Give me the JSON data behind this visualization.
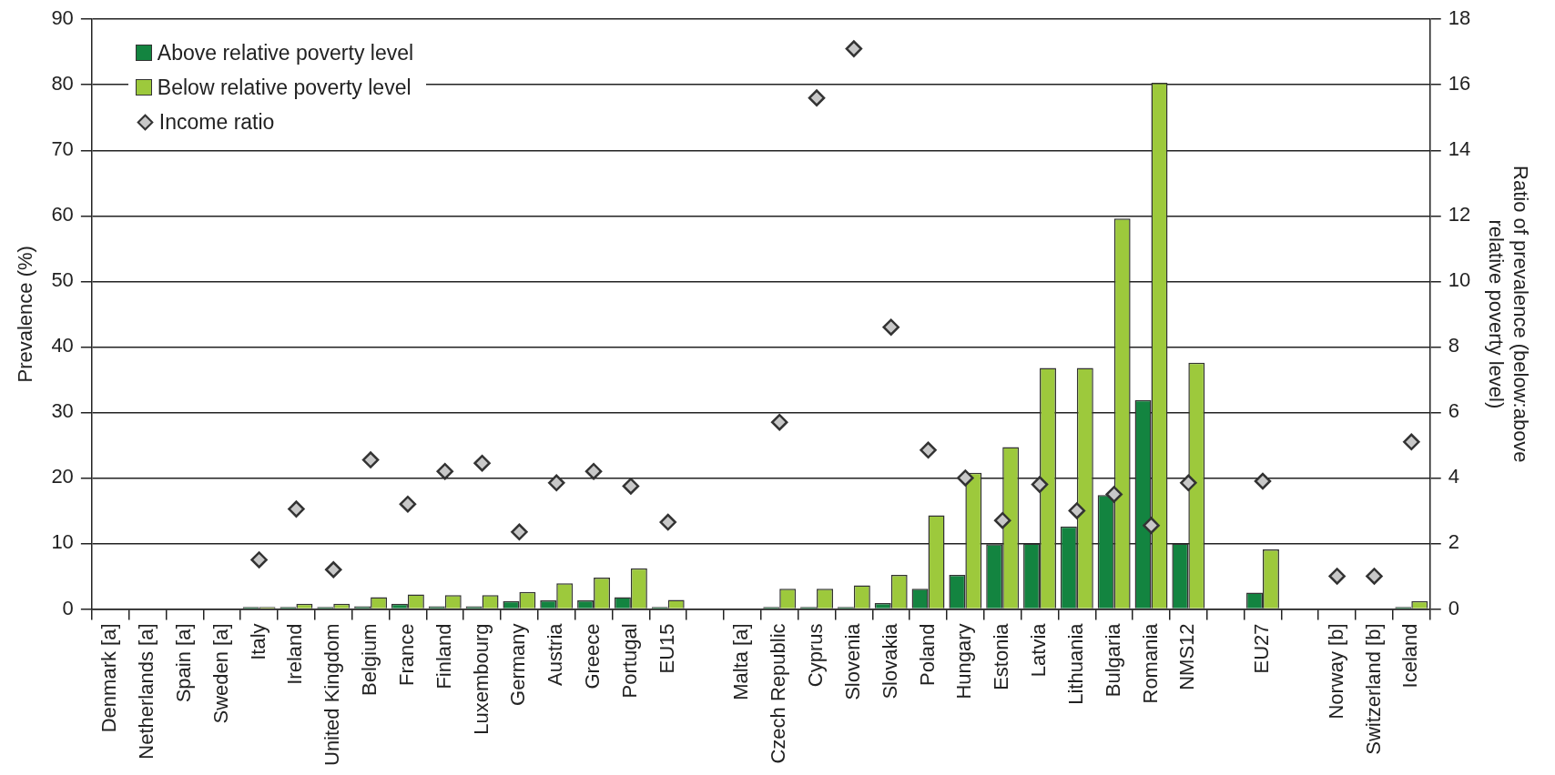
{
  "chart_data": {
    "type": "bar",
    "ylabel": "Prevalence (%)",
    "y2label": "Ratio of prevalence (below:above\nrelative poverty level)",
    "categories": [
      "Denmark [a]",
      "Netherlands [a]",
      "Spain [a]",
      "Sweden [a]",
      "Italy",
      "Ireland",
      "United Kingdom",
      "Belgium",
      "France",
      "Finland",
      "Luxembourg",
      "Germany",
      "Austria",
      "Greece",
      "Portugal",
      "EU15",
      null,
      "Malta [a]",
      "Czech Republic",
      "Cyprus",
      "Slovenia",
      "Slovakia",
      "Poland",
      "Hungary",
      "Estonia",
      "Latvia",
      "Lithuania",
      "Bulgaria",
      "Romania",
      "NMS12",
      null,
      "EU27",
      null,
      "Norway [b]",
      "Switzerland [b]",
      "Iceland"
    ],
    "series": [
      {
        "name": "Above relative poverty level",
        "color": "#138440",
        "values": [
          null,
          null,
          null,
          null,
          0.3,
          0.3,
          0.3,
          0.4,
          0.8,
          0.4,
          0.4,
          1.2,
          1.3,
          1.3,
          1.8,
          0.3,
          null,
          null,
          0.3,
          0.3,
          0.3,
          0.9,
          3.1,
          5.2,
          9.9,
          10,
          12.6,
          17.4,
          31.9,
          10,
          null,
          2.5,
          null,
          null,
          null,
          0.3
        ]
      },
      {
        "name": "Below relative poverty level",
        "color": "#9dc93c",
        "values": [
          null,
          null,
          null,
          null,
          0.3,
          0.8,
          0.8,
          1.8,
          2.2,
          2.1,
          2.1,
          2.6,
          3.9,
          4.8,
          6.2,
          1.4,
          null,
          null,
          3.1,
          3.1,
          3.6,
          5.2,
          14.3,
          20.8,
          24.7,
          36.8,
          36.8,
          59.6,
          80.3,
          37.6,
          null,
          9.1,
          null,
          null,
          null,
          1.2
        ]
      },
      {
        "name": "Income ratio",
        "type": "scatter",
        "axis": "y2",
        "marker": "diamond",
        "color": "#c8c8c8",
        "values": [
          null,
          null,
          null,
          null,
          1.5,
          3.05,
          1.2,
          4.55,
          3.2,
          4.2,
          4.45,
          2.35,
          3.85,
          4.2,
          3.75,
          2.65,
          null,
          null,
          5.7,
          15.6,
          17.1,
          8.6,
          4.85,
          4.0,
          2.7,
          3.8,
          3.0,
          3.5,
          2.55,
          3.85,
          null,
          3.9,
          null,
          1.0,
          1.0,
          5.1
        ]
      }
    ],
    "ylim": [
      0,
      90
    ],
    "yticks": [
      0,
      10,
      20,
      30,
      40,
      50,
      60,
      70,
      80,
      90
    ],
    "y2lim": [
      0,
      18
    ],
    "y2ticks": [
      0,
      2,
      4,
      6,
      8,
      10,
      12,
      14,
      16,
      18
    ],
    "grid": "y",
    "legend": "top left"
  }
}
